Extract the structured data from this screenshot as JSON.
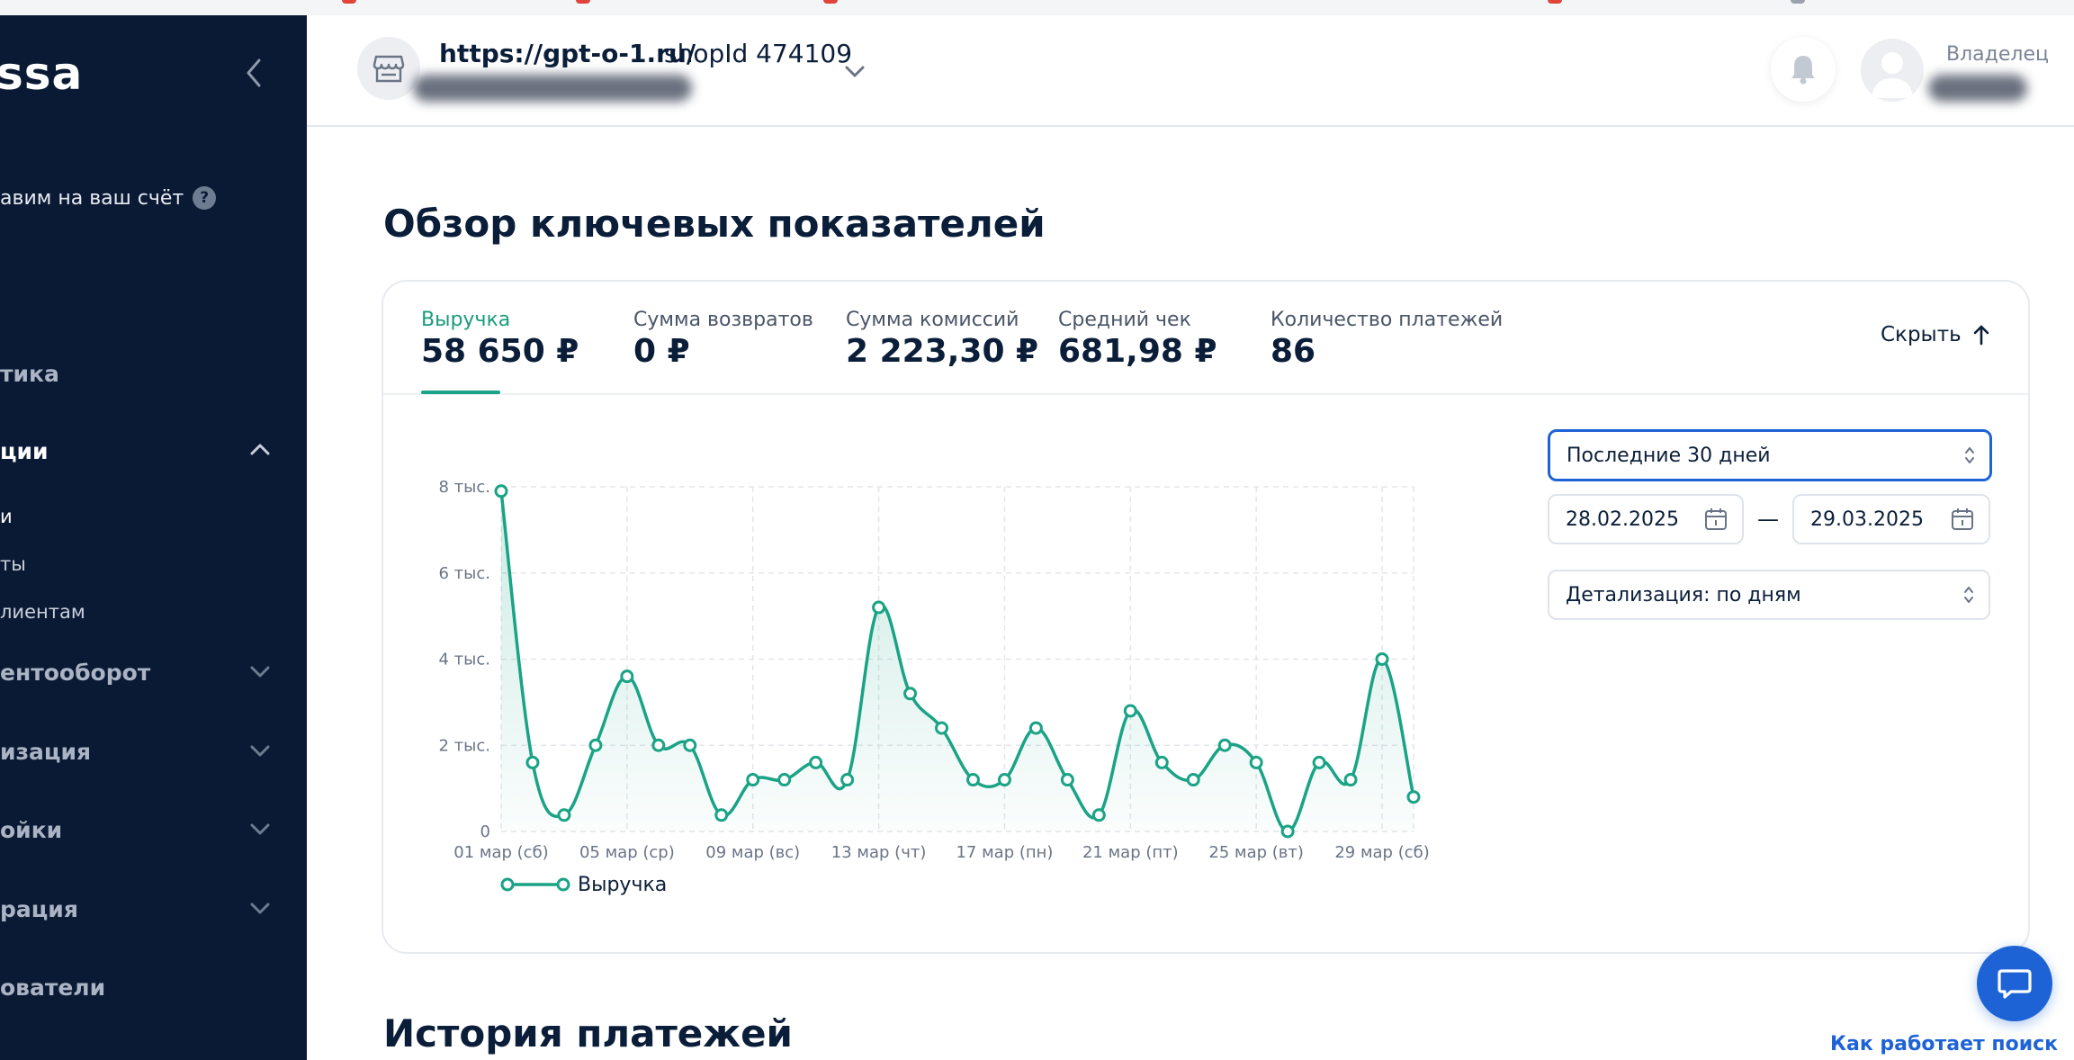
{
  "sidebar": {
    "logo": "ssa",
    "promo_text": "авим на ваш счёт",
    "promo_help": "?",
    "items": [
      {
        "label": "тика",
        "active": false
      },
      {
        "label": "ции",
        "active": true
      },
      {
        "label": "ентооборот",
        "active": false
      },
      {
        "label": "изация",
        "active": false
      },
      {
        "label": "ойки",
        "active": false
      },
      {
        "label": "рация",
        "active": false
      },
      {
        "label": "ователи",
        "active": false
      }
    ],
    "subitems": [
      "и",
      "ты",
      "лиентам"
    ]
  },
  "header": {
    "shop_url": "https://gpt-o-1.ru/",
    "shop_id": "shopId 474109",
    "role": "Владелец"
  },
  "main": {
    "overview_title": "Обзор ключевых показателей",
    "history_title": "История платежей",
    "help_link": "Как работает поиск",
    "hide_label": "Скрыть",
    "kpis": [
      {
        "label": "Выручка",
        "value": "58 650 ₽",
        "active": true
      },
      {
        "label": "Сумма возвратов",
        "value": "0 ₽",
        "active": false
      },
      {
        "label": "Сумма комиссий",
        "value": "2 223,30 ₽",
        "active": false
      },
      {
        "label": "Средний чек",
        "value": "681,98 ₽",
        "active": false
      },
      {
        "label": "Количество платежей",
        "value": "86",
        "active": false
      }
    ],
    "period_select": "Последние 30 дней",
    "date_from": "28.02.2025",
    "date_sep": "—",
    "date_to": "29.03.2025",
    "detail_select": "Детализация: по дням"
  },
  "colors": {
    "sidebar_bg": "#0b1a34",
    "accent_green": "#1aa385",
    "accent_blue": "#1e63d6",
    "text_dark": "#0b1e39"
  },
  "chart_data": {
    "type": "area",
    "series": [
      {
        "name": "Выручка",
        "values": [
          7900,
          1600,
          380,
          2000,
          3600,
          2000,
          2000,
          380,
          1200,
          1200,
          1600,
          1200,
          5200,
          3200,
          2400,
          1200,
          1200,
          2400,
          1200,
          380,
          2800,
          1600,
          1200,
          2000,
          1600,
          0,
          1600,
          1200,
          4000,
          800
        ]
      }
    ],
    "x_labels": [
      "01 мар (сб)",
      "05 мар (ср)",
      "09 мар (вс)",
      "13 мар (чт)",
      "17 мар (пн)",
      "21 мар (пт)",
      "25 мар (вт)",
      "29 мар (сб)"
    ],
    "y_ticks": [
      "0",
      "2 тыс.",
      "4 тыс.",
      "6 тыс.",
      "8 тыс."
    ],
    "ylim": [
      0,
      8000
    ],
    "grid": true,
    "legend": "bottom-left"
  }
}
